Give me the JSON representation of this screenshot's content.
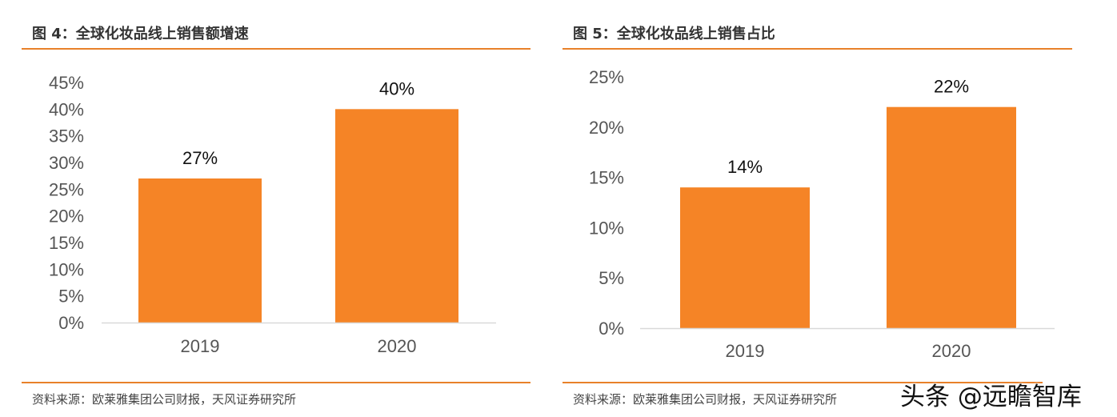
{
  "colors": {
    "bar": "#f58426",
    "rule": "#e8812a",
    "axis": "#d9d9d9"
  },
  "chart_data": [
    {
      "type": "bar",
      "title": "图 4：全球化妆品线上销售额增速",
      "categories": [
        "2019",
        "2020"
      ],
      "values": [
        27,
        40
      ],
      "data_labels": [
        "27%",
        "40%"
      ],
      "ylim": [
        0,
        45
      ],
      "yticks": [
        "0%",
        "5%",
        "10%",
        "15%",
        "20%",
        "25%",
        "30%",
        "35%",
        "40%",
        "45%"
      ],
      "grid": false,
      "source": "资料来源：欧莱雅集团公司财报，天风证券研究所"
    },
    {
      "type": "bar",
      "title": "图 5：全球化妆品线上销售占比",
      "categories": [
        "2019",
        "2020"
      ],
      "values": [
        14,
        22
      ],
      "data_labels": [
        "14%",
        "22%"
      ],
      "ylim": [
        0,
        25
      ],
      "yticks": [
        "0%",
        "5%",
        "10%",
        "15%",
        "20%",
        "25%"
      ],
      "grid": false,
      "source": "资料来源：欧莱雅集团公司财报，天风证券研究所"
    }
  ],
  "watermark": "头条 @远瞻智库"
}
